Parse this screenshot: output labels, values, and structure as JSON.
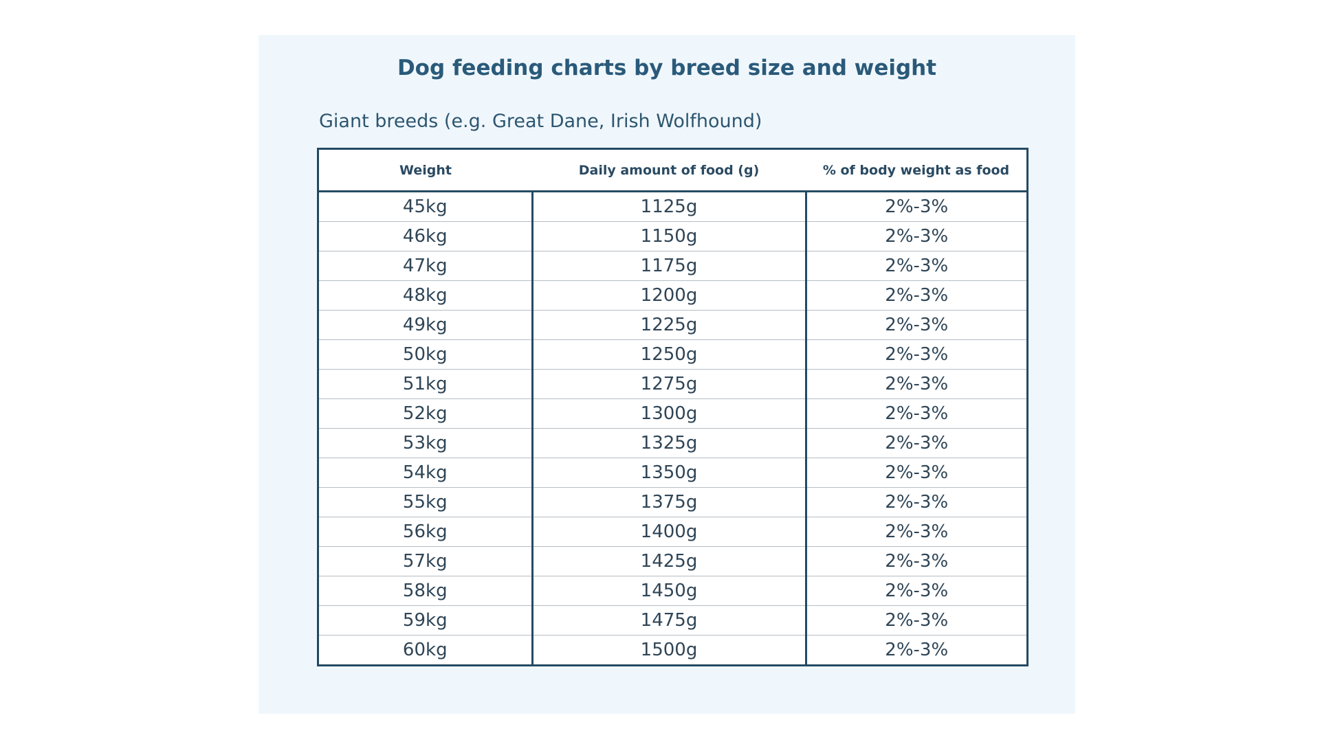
{
  "header": {
    "title": "Dog feeding charts by breed size and weight",
    "subtitle": "Giant breeds (e.g. Great Dane, Irish Wolfhound)"
  },
  "table": {
    "columns": [
      "Weight",
      "Daily amount of food (g)",
      "% of body weight as food"
    ],
    "rows": [
      [
        "45kg",
        "1125g",
        "2%-3%"
      ],
      [
        "46kg",
        "1150g",
        "2%-3%"
      ],
      [
        "47kg",
        "1175g",
        "2%-3%"
      ],
      [
        "48kg",
        "1200g",
        "2%-3%"
      ],
      [
        "49kg",
        "1225g",
        "2%-3%"
      ],
      [
        "50kg",
        "1250g",
        "2%-3%"
      ],
      [
        "51kg",
        "1275g",
        "2%-3%"
      ],
      [
        "52kg",
        "1300g",
        "2%-3%"
      ],
      [
        "53kg",
        "1325g",
        "2%-3%"
      ],
      [
        "54kg",
        "1350g",
        "2%-3%"
      ],
      [
        "55kg",
        "1375g",
        "2%-3%"
      ],
      [
        "56kg",
        "1400g",
        "2%-3%"
      ],
      [
        "57kg",
        "1425g",
        "2%-3%"
      ],
      [
        "58kg",
        "1450g",
        "2%-3%"
      ],
      [
        "59kg",
        "1475g",
        "2%-3%"
      ],
      [
        "60kg",
        "1500g",
        "2%-3%"
      ]
    ]
  }
}
